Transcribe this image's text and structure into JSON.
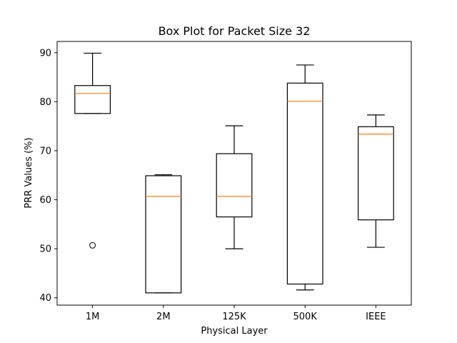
{
  "chart_data": {
    "type": "box",
    "title": "Box Plot for Packet Size 32",
    "xlabel": "Physical Layer",
    "ylabel": "PRR Values (%)",
    "categories": [
      "1M",
      "2M",
      "125K",
      "500K",
      "IEEE"
    ],
    "yticks": [
      40,
      50,
      60,
      70,
      80,
      90
    ],
    "ylim": [
      38.5,
      92.3
    ],
    "grid": false,
    "boxes": [
      {
        "category": "1M",
        "whisker_low": 77.6,
        "q1": 77.6,
        "median": 81.7,
        "q3": 83.3,
        "whisker_high": 89.9,
        "outliers": [
          50.7
        ]
      },
      {
        "category": "2M",
        "whisker_low": 41.0,
        "q1": 41.0,
        "median": 60.7,
        "q3": 64.9,
        "whisker_high": 65.1,
        "outliers": []
      },
      {
        "category": "125K",
        "whisker_low": 50.0,
        "q1": 56.5,
        "median": 60.7,
        "q3": 69.4,
        "whisker_high": 75.1,
        "outliers": []
      },
      {
        "category": "500K",
        "whisker_low": 41.6,
        "q1": 42.8,
        "median": 80.1,
        "q3": 83.8,
        "whisker_high": 87.5,
        "outliers": []
      },
      {
        "category": "IEEE",
        "whisker_low": 50.3,
        "q1": 55.9,
        "median": 73.4,
        "q3": 74.9,
        "whisker_high": 77.3,
        "outliers": []
      }
    ],
    "colors": {
      "box": "#000000",
      "median": "#ff7f0e",
      "outlier": "#000000"
    }
  }
}
